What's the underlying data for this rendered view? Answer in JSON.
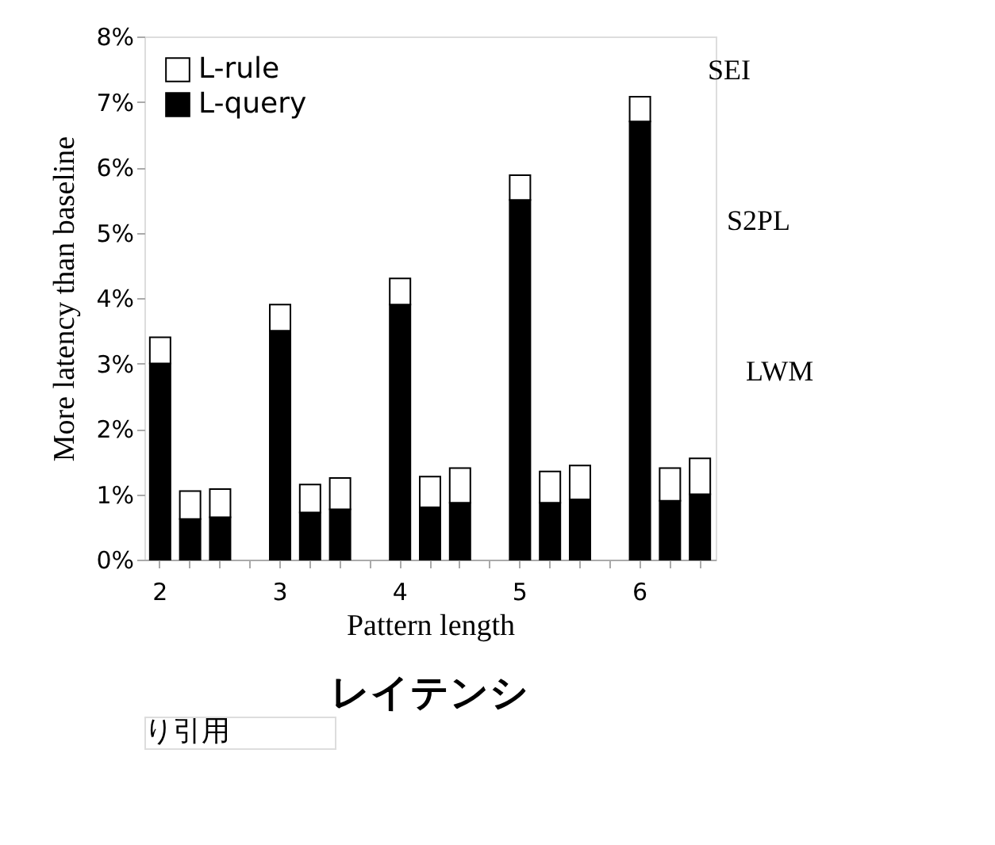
{
  "chart_data": {
    "type": "bar",
    "stacked": true,
    "title": "レイテンシ",
    "xlabel": "Pattern length",
    "ylabel": "More latency than baseline",
    "categories": [
      "2",
      null,
      null,
      "3",
      null,
      null,
      "4",
      null,
      null,
      "5",
      null,
      null,
      "6",
      null,
      null
    ],
    "series": [
      {
        "name": "L-query",
        "color": "#000000",
        "values": [
          3.0,
          0.62,
          0.65,
          3.5,
          0.72,
          0.77,
          3.9,
          0.8,
          0.87,
          5.5,
          0.87,
          0.92,
          6.7,
          0.9,
          1.0
        ]
      },
      {
        "name": "L-rule",
        "color": "#ffffff",
        "values": [
          0.4,
          0.43,
          0.43,
          0.4,
          0.43,
          0.48,
          0.4,
          0.47,
          0.53,
          0.38,
          0.48,
          0.52,
          0.38,
          0.5,
          0.55
        ]
      }
    ],
    "ylim": [
      0,
      8
    ],
    "yticks": [
      {
        "value": 0,
        "label": "0%"
      },
      {
        "value": 1,
        "label": "1%"
      },
      {
        "value": 2,
        "label": "2%"
      },
      {
        "value": 3,
        "label": "3%"
      },
      {
        "value": 4,
        "label": "4%"
      },
      {
        "value": 5,
        "label": "5%"
      },
      {
        "value": 6,
        "label": "6%"
      },
      {
        "value": 7,
        "label": "7%"
      },
      {
        "value": 8,
        "label": "8%"
      }
    ],
    "grid": false,
    "legend": "top left",
    "annotations": [
      "SEI",
      "S2PL",
      "LWM",
      "り引用"
    ]
  }
}
